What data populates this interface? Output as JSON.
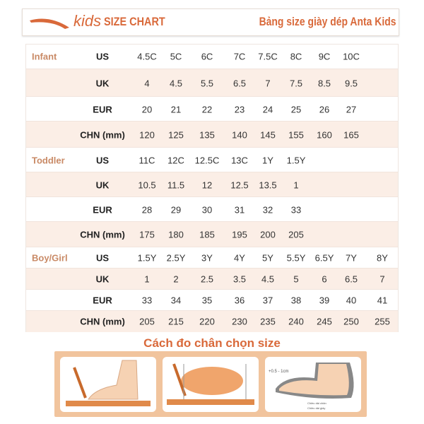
{
  "header": {
    "brand": "kids",
    "title": "SIZE CHART",
    "subtitle": "Bảng size giày dép Anta Kids"
  },
  "colors": {
    "accent": "#d9693a",
    "row_alt": "#fbeee6",
    "group_label": "#c98a66"
  },
  "groups": [
    {
      "name": "Infant",
      "rows": [
        {
          "type": "US",
          "values": [
            "4.5C",
            "5C",
            "6C",
            "7C",
            "7.5C",
            "8C",
            "9C",
            "10C"
          ]
        },
        {
          "type": "UK",
          "values": [
            "4",
            "4.5",
            "5.5",
            "6.5",
            "7",
            "7.5",
            "8.5",
            "9.5"
          ]
        },
        {
          "type": "EUR",
          "values": [
            "20",
            "21",
            "22",
            "23",
            "24",
            "25",
            "26",
            "27"
          ]
        },
        {
          "type": "CHN (mm)",
          "values": [
            "120",
            "125",
            "135",
            "140",
            "145",
            "155",
            "160",
            "165"
          ]
        }
      ]
    },
    {
      "name": "Toddler",
      "rows": [
        {
          "type": "US",
          "values": [
            "11C",
            "12C",
            "12.5C",
            "13C",
            "1Y",
            "1.5Y"
          ]
        },
        {
          "type": "UK",
          "values": [
            "10.5",
            "11.5",
            "12",
            "12.5",
            "13.5",
            "1"
          ]
        },
        {
          "type": "EUR",
          "values": [
            "28",
            "29",
            "30",
            "31",
            "32",
            "33"
          ]
        },
        {
          "type": "CHN (mm)",
          "values": [
            "175",
            "180",
            "185",
            "195",
            "200",
            "205"
          ]
        }
      ]
    },
    {
      "name": "Boy/Girl",
      "rows": [
        {
          "type": "US",
          "values": [
            "1.5Y",
            "2.5Y",
            "3Y",
            "4Y",
            "5Y",
            "5.5Y",
            "6.5Y",
            "7Y",
            "8Y"
          ]
        },
        {
          "type": "UK",
          "values": [
            "1",
            "2",
            "2.5",
            "3.5",
            "4.5",
            "5",
            "6",
            "6.5",
            "7"
          ]
        },
        {
          "type": "EUR",
          "values": [
            "33",
            "34",
            "35",
            "36",
            "37",
            "38",
            "39",
            "40",
            "41"
          ]
        },
        {
          "type": "CHN (mm)",
          "values": [
            "205",
            "215",
            "220",
            "230",
            "235",
            "240",
            "245",
            "250",
            "255"
          ]
        }
      ]
    }
  ],
  "howto": {
    "title": "Cách đo chân chọn size",
    "margin_label": "+0.5 - 1cm",
    "foot_length": "Chiều dài chân",
    "shoe_length": "Chiều dài giày"
  }
}
